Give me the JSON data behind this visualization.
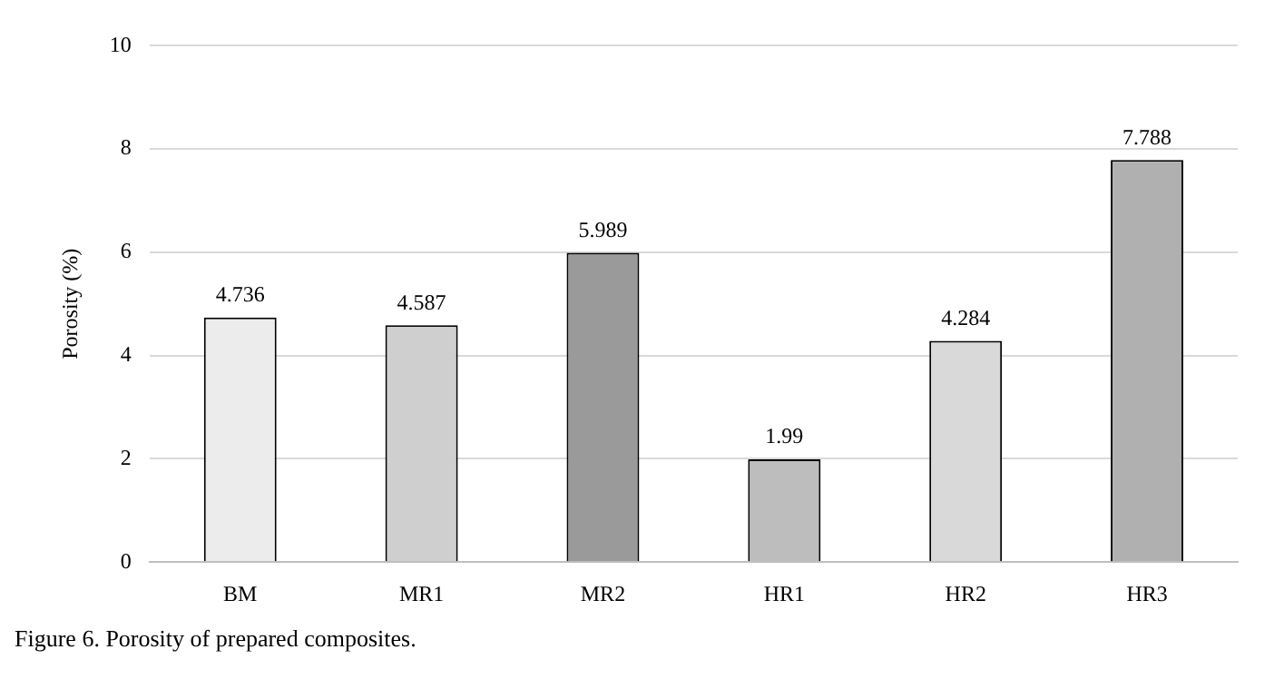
{
  "chart_data": {
    "type": "bar",
    "categories": [
      "BM",
      "MR1",
      "MR2",
      "HR1",
      "HR2",
      "HR3"
    ],
    "values": [
      4.736,
      4.587,
      5.989,
      1.99,
      4.284,
      7.788
    ],
    "colors": [
      "#ececec",
      "#cfcfcf",
      "#9a9a9a",
      "#bdbdbd",
      "#d9d9d9",
      "#b0b0b0"
    ],
    "ylabel": "Porosity (%)",
    "ylim": [
      0,
      10
    ],
    "yticks": [
      0,
      2,
      4,
      6,
      8,
      10
    ],
    "grid": "y",
    "data_labels": true,
    "annotations": [
      "Figure 6. Porosity of prepared composites."
    ]
  }
}
